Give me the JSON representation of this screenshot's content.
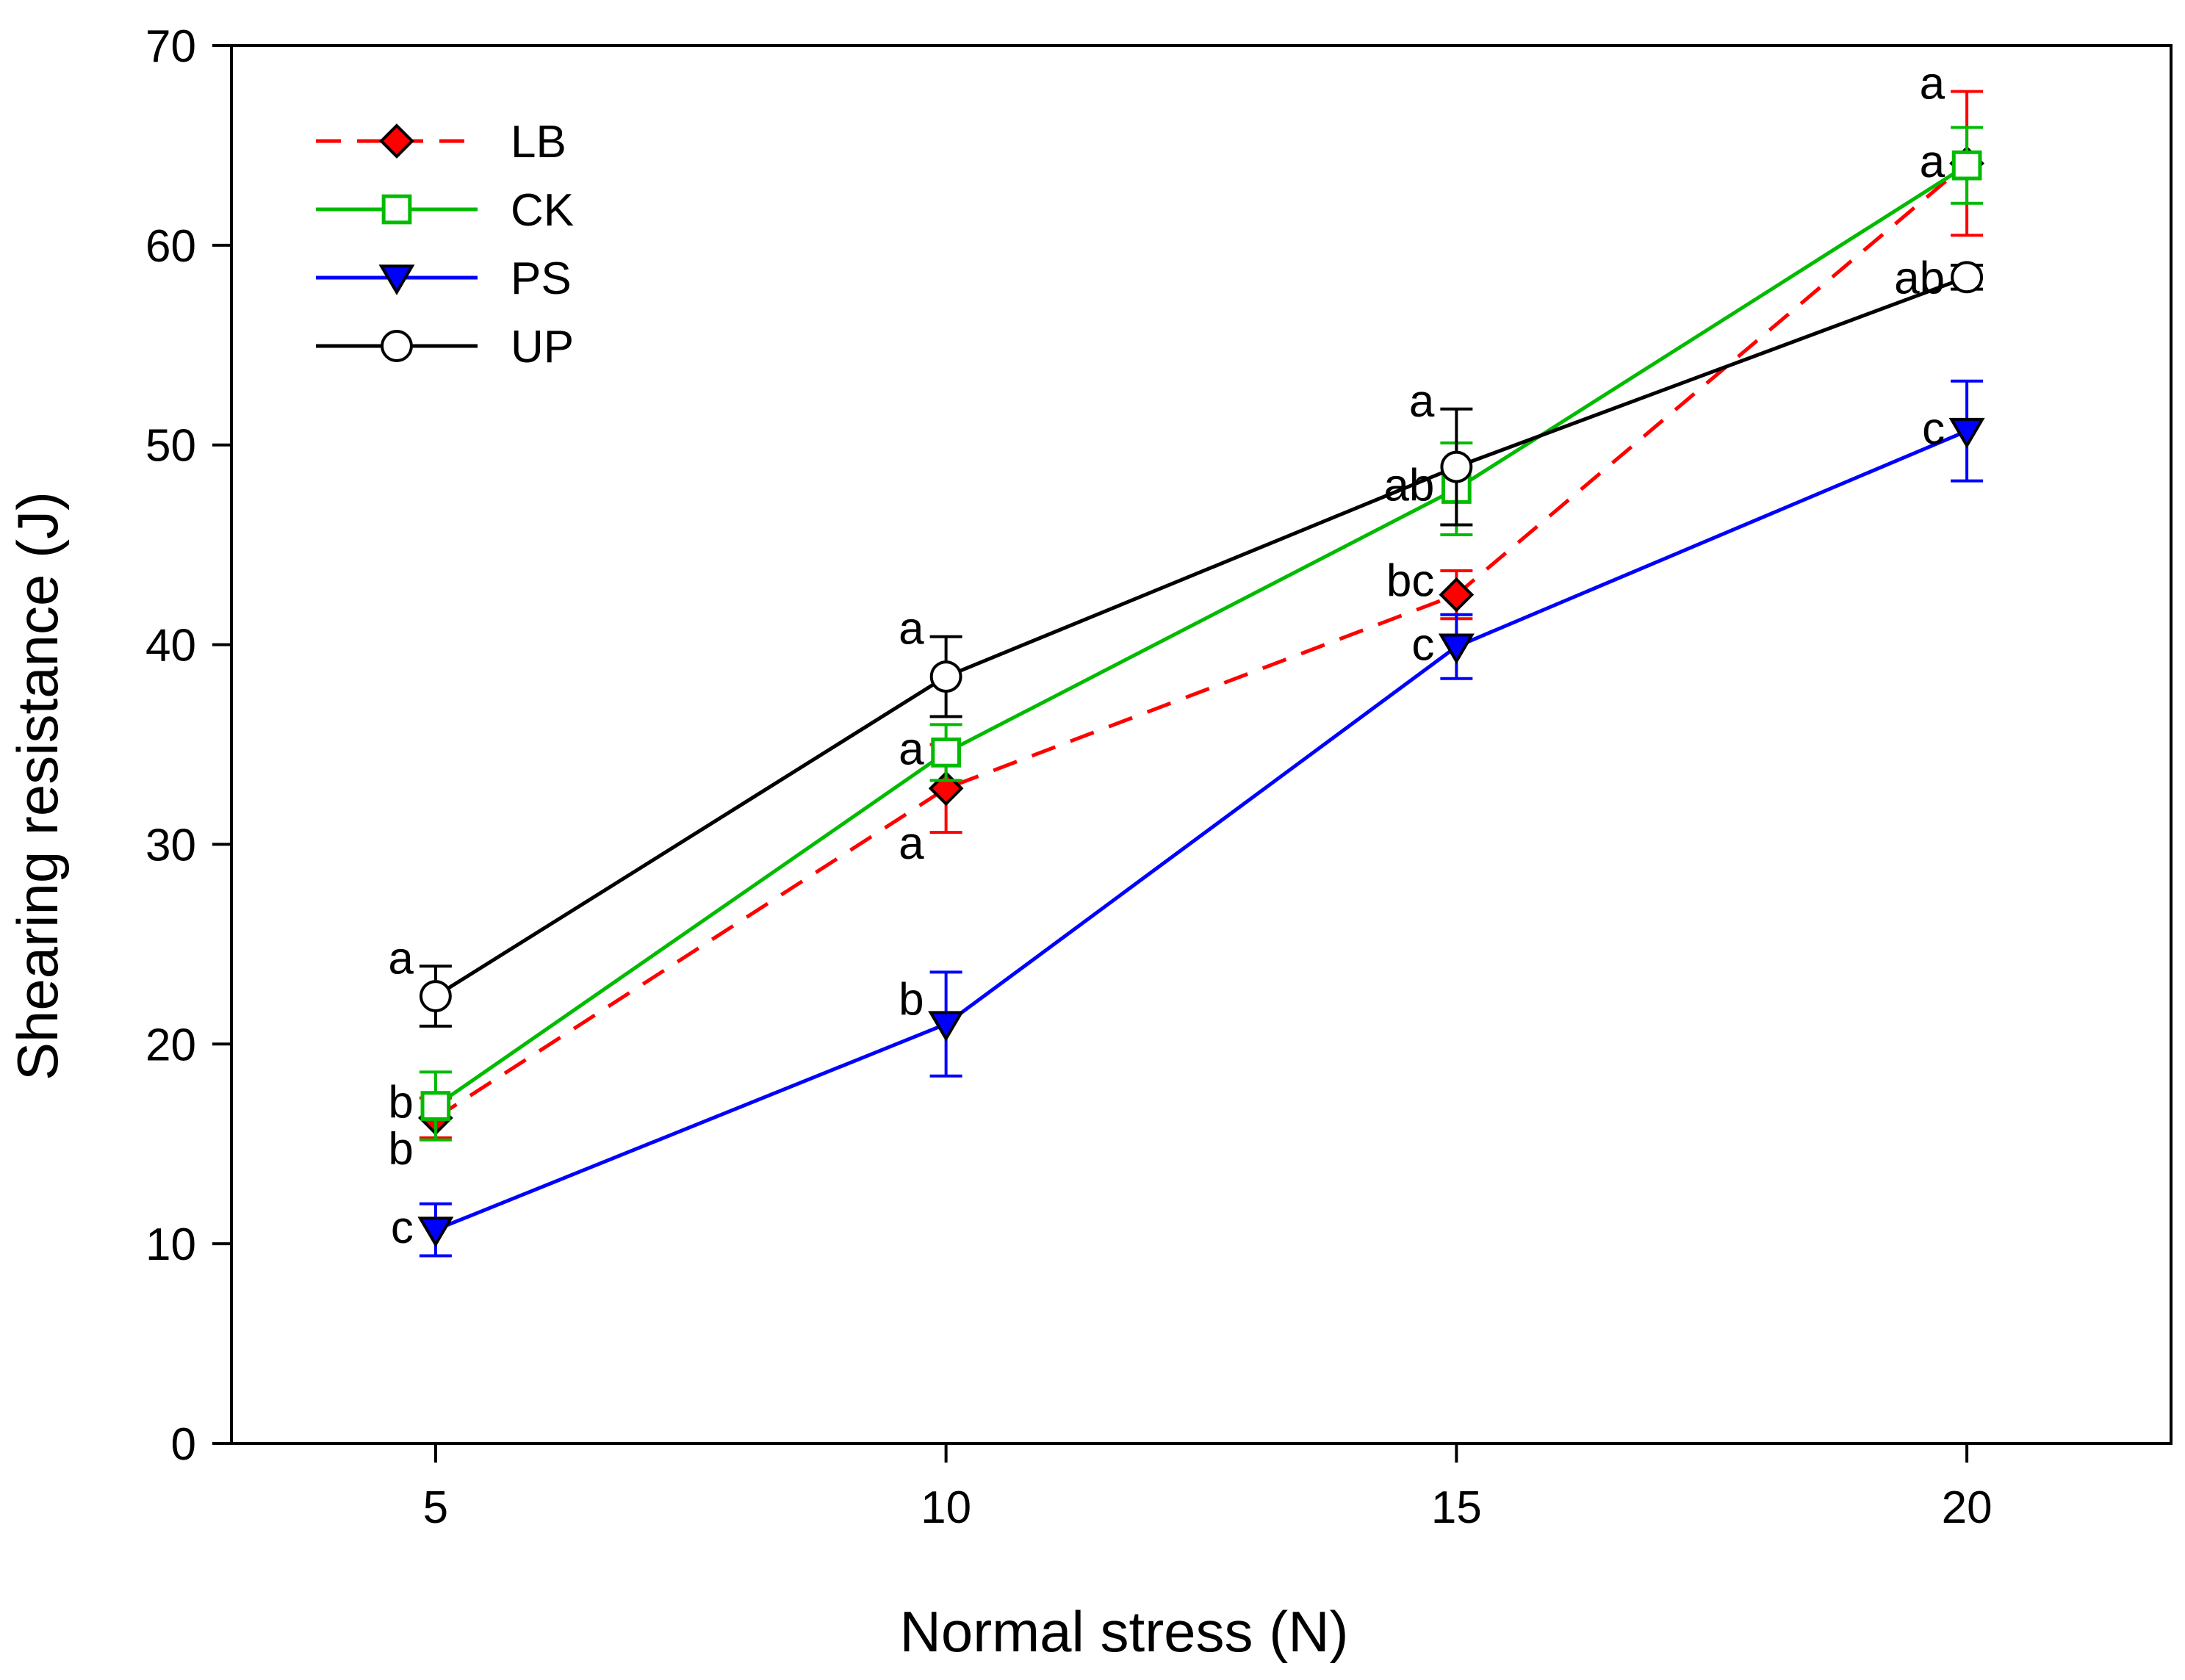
{
  "chart_data": {
    "type": "line",
    "title": "",
    "xlabel": "Normal stress (N)",
    "ylabel": "Shearing resistance (J)",
    "x": [
      5,
      10,
      15,
      20
    ],
    "xlim": [
      3,
      22
    ],
    "ylim": [
      0,
      70
    ],
    "xticks": [
      "5",
      "10",
      "15",
      "20"
    ],
    "yticks": [
      "0",
      "10",
      "20",
      "30",
      "40",
      "50",
      "60",
      "70"
    ],
    "grid": false,
    "legend_position": "top-left",
    "series": [
      {
        "name": "LB",
        "color": "#ff0000",
        "line": "dashed",
        "marker": "diamond",
        "marker_fill": "#ff0000",
        "values": [
          16.3,
          32.8,
          42.5,
          64.1
        ],
        "errors": [
          1.0,
          2.2,
          1.2,
          3.6
        ],
        "labels": [
          "b",
          "a",
          "bc",
          "a"
        ]
      },
      {
        "name": "CK",
        "color": "#00bb00",
        "line": "solid",
        "marker": "square",
        "marker_fill": "#ffffff",
        "values": [
          16.9,
          34.6,
          47.8,
          64.0
        ],
        "errors": [
          1.7,
          1.4,
          2.3,
          1.9
        ],
        "labels": [
          "b",
          "a",
          "ab",
          "a"
        ]
      },
      {
        "name": "PS",
        "color": "#0000ff",
        "line": "solid",
        "marker": "triangle-down",
        "marker_fill": "#0000ff",
        "values": [
          10.7,
          21.0,
          39.9,
          50.7
        ],
        "errors": [
          1.3,
          2.6,
          1.6,
          2.5
        ],
        "labels": [
          "c",
          "b",
          "c",
          "c"
        ]
      },
      {
        "name": "UP",
        "color": "#000000",
        "line": "solid",
        "marker": "circle",
        "marker_fill": "#ffffff",
        "values": [
          22.4,
          38.4,
          48.9,
          58.4
        ],
        "errors": [
          1.5,
          2.0,
          2.9,
          0.6
        ],
        "labels": [
          "a",
          "a",
          "a",
          "ab"
        ]
      }
    ]
  }
}
